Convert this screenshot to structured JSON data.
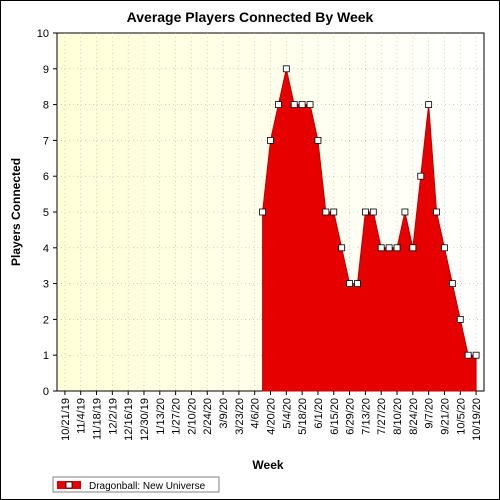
{
  "chart_data": {
    "type": "area",
    "title": "Average Players Connected By Week",
    "xlabel": "Week",
    "ylabel": "Players Connected",
    "ylim": [
      0,
      10
    ],
    "yticks": [
      "0",
      "1",
      "2",
      "3",
      "4",
      "5",
      "6",
      "7",
      "8",
      "9",
      "10"
    ],
    "xtick_labels": [
      "10/21/19",
      "11/4/19",
      "11/18/19",
      "12/2/19",
      "12/16/19",
      "12/30/19",
      "1/13/20",
      "1/27/20",
      "2/10/20",
      "2/24/20",
      "3/9/20",
      "3/23/20",
      "4/6/20",
      "4/20/20",
      "5/4/20",
      "5/18/20",
      "6/1/20",
      "6/15/20",
      "6/29/20",
      "7/13/20",
      "7/27/20",
      "8/10/20",
      "8/24/20",
      "9/7/20",
      "9/21/20",
      "10/5/20",
      "10/19/20"
    ],
    "grid": true,
    "legend_position": "bottom-left",
    "colors": {
      "fill": "#e60000",
      "line": "#c00000",
      "marker_fill": "#ffffff",
      "plot_bg_left": "#ffffd8",
      "plot_bg_right": "#ffffff"
    },
    "series": [
      {
        "name": "Dragonball: New Universe",
        "x": [
          "4/13/20",
          "4/20/20",
          "4/27/20",
          "5/4/20",
          "5/11/20",
          "5/18/20",
          "5/25/20",
          "6/1/20",
          "6/8/20",
          "6/15/20",
          "6/22/20",
          "6/29/20",
          "7/6/20",
          "7/13/20",
          "7/20/20",
          "7/27/20",
          "8/3/20",
          "8/10/20",
          "8/17/20",
          "8/24/20",
          "8/31/20",
          "9/7/20",
          "9/14/20",
          "9/21/20",
          "9/28/20",
          "10/5/20",
          "10/12/20",
          "10/19/20"
        ],
        "values": [
          5,
          7,
          8,
          9,
          8,
          8,
          8,
          7,
          5,
          5,
          4,
          3,
          3,
          5,
          5,
          4,
          4,
          4,
          5,
          4,
          6,
          8,
          5,
          4,
          3,
          2,
          1,
          1
        ]
      }
    ]
  }
}
